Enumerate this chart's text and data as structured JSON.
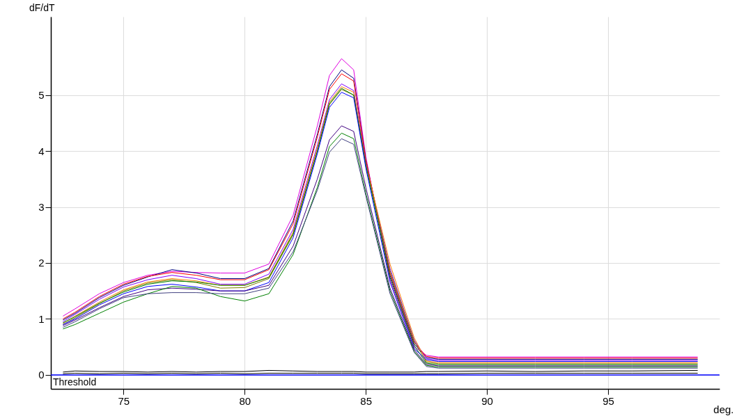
{
  "chart_data": {
    "type": "line",
    "xlabel": "deg.",
    "ylabel": "dF/dT",
    "xlim": [
      72,
      99.6
    ],
    "ylim": [
      -0.25,
      6.4
    ],
    "xticks": [
      75,
      80,
      85,
      90,
      95
    ],
    "yticks": [
      0,
      1,
      2,
      3,
      4,
      5
    ],
    "grid": true,
    "x": [
      72.5,
      73,
      74,
      75,
      76,
      77,
      78,
      79,
      80,
      81,
      82,
      83,
      83.5,
      84,
      84.5,
      85,
      86,
      87,
      87.5,
      88,
      90,
      92,
      94,
      96,
      98.7
    ],
    "ref_lines": [
      {
        "axis": "y",
        "value": 0,
        "label": "Threshold",
        "color": "#0000ff"
      }
    ],
    "series": [
      {
        "color": "#e000e0",
        "values": [
          1.05,
          1.18,
          1.45,
          1.65,
          1.78,
          1.85,
          1.83,
          1.82,
          1.82,
          1.98,
          2.85,
          4.45,
          5.35,
          5.65,
          5.45,
          3.9,
          1.7,
          0.5,
          0.35,
          0.32,
          0.32,
          0.32,
          0.32,
          0.32,
          0.32
        ]
      },
      {
        "color": "#000080",
        "values": [
          0.98,
          1.1,
          1.38,
          1.6,
          1.75,
          1.88,
          1.82,
          1.72,
          1.72,
          1.9,
          2.75,
          4.3,
          5.15,
          5.45,
          5.3,
          3.85,
          1.78,
          0.55,
          0.31,
          0.28,
          0.28,
          0.28,
          0.28,
          0.28,
          0.28
        ]
      },
      {
        "color": "#ff0000",
        "values": [
          1.0,
          1.12,
          1.4,
          1.62,
          1.76,
          1.83,
          1.78,
          1.7,
          1.7,
          1.88,
          2.7,
          4.25,
          5.1,
          5.38,
          5.25,
          3.85,
          1.82,
          0.58,
          0.33,
          0.3,
          0.3,
          0.3,
          0.3,
          0.3,
          0.3
        ]
      },
      {
        "color": "#8000ff",
        "values": [
          0.95,
          1.08,
          1.35,
          1.57,
          1.7,
          1.78,
          1.72,
          1.62,
          1.62,
          1.8,
          2.6,
          4.1,
          4.92,
          5.2,
          5.08,
          3.8,
          1.9,
          0.62,
          0.29,
          0.26,
          0.26,
          0.26,
          0.26,
          0.26,
          0.26
        ]
      },
      {
        "color": "#ff8000",
        "values": [
          0.92,
          1.05,
          1.3,
          1.52,
          1.66,
          1.72,
          1.68,
          1.6,
          1.6,
          1.75,
          2.55,
          4.05,
          4.88,
          5.15,
          5.05,
          3.78,
          1.98,
          0.66,
          0.25,
          0.22,
          0.22,
          0.22,
          0.22,
          0.22,
          0.22
        ]
      },
      {
        "color": "#808000",
        "values": [
          0.9,
          1.02,
          1.27,
          1.5,
          1.64,
          1.7,
          1.65,
          1.55,
          1.56,
          1.72,
          2.5,
          4.0,
          4.83,
          5.1,
          5.0,
          3.75,
          1.86,
          0.6,
          0.23,
          0.2,
          0.2,
          0.2,
          0.2,
          0.2,
          0.2
        ]
      },
      {
        "color": "#008000",
        "values": [
          0.93,
          1.04,
          1.28,
          1.48,
          1.62,
          1.68,
          1.66,
          1.6,
          1.6,
          1.74,
          2.52,
          4.0,
          4.85,
          5.12,
          5.0,
          3.75,
          1.74,
          0.52,
          0.21,
          0.18,
          0.18,
          0.18,
          0.18,
          0.18,
          0.18
        ]
      },
      {
        "color": "#0000ff",
        "values": [
          0.9,
          1.0,
          1.25,
          1.45,
          1.58,
          1.62,
          1.57,
          1.5,
          1.5,
          1.65,
          2.45,
          3.95,
          4.78,
          5.05,
          4.95,
          3.7,
          1.66,
          0.47,
          0.27,
          0.24,
          0.24,
          0.24,
          0.24,
          0.24,
          0.24
        ]
      },
      {
        "color": "#400080",
        "values": [
          0.88,
          0.98,
          1.2,
          1.4,
          1.52,
          1.55,
          1.53,
          1.5,
          1.5,
          1.6,
          2.3,
          3.5,
          4.2,
          4.45,
          4.35,
          3.35,
          1.55,
          0.45,
          0.19,
          0.16,
          0.16,
          0.16,
          0.16,
          0.16,
          0.16
        ]
      },
      {
        "color": "#008000",
        "values": [
          0.82,
          0.9,
          1.1,
          1.3,
          1.45,
          1.58,
          1.55,
          1.4,
          1.32,
          1.45,
          2.15,
          3.35,
          4.08,
          4.32,
          4.22,
          3.25,
          1.5,
          0.42,
          0.17,
          0.14,
          0.14,
          0.14,
          0.14,
          0.14,
          0.14
        ]
      },
      {
        "color": "#404080",
        "values": [
          0.85,
          0.95,
          1.18,
          1.38,
          1.45,
          1.47,
          1.47,
          1.45,
          1.45,
          1.55,
          2.2,
          3.3,
          3.98,
          4.22,
          4.12,
          3.2,
          1.45,
          0.4,
          0.15,
          0.12,
          0.12,
          0.12,
          0.12,
          0.12,
          0.12
        ]
      },
      {
        "color": "#000000",
        "values": [
          0.05,
          0.07,
          0.06,
          0.06,
          0.05,
          0.06,
          0.05,
          0.06,
          0.06,
          0.08,
          0.07,
          0.06,
          0.06,
          0.06,
          0.06,
          0.05,
          0.05,
          0.05,
          0.06,
          0.06,
          0.07,
          0.06,
          0.07,
          0.07,
          0.08
        ]
      },
      {
        "color": "#000000",
        "values": [
          0.02,
          0.03,
          0.02,
          0.03,
          0.02,
          0.03,
          0.02,
          0.03,
          0.02,
          0.03,
          0.03,
          0.03,
          0.03,
          0.03,
          0.03,
          0.02,
          0.02,
          0.02,
          0.02,
          0.02,
          0.03,
          0.03,
          0.03,
          0.03,
          0.03
        ]
      }
    ]
  }
}
